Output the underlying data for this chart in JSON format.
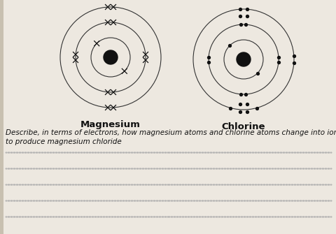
{
  "bg_color": "#c8c0b0",
  "paper_color": "#ede8e0",
  "title_mg": "Magnesium",
  "title_cl": "Chlorine",
  "question_line1": "Describe, in terms of electrons, how magnesium atoms and chlorine atoms change into ions",
  "question_line2": "to produce magnesium chloride",
  "question_fontsize": 7.5,
  "title_fontsize": 9.5,
  "shell_color": "#333333",
  "nucleus_color": "#111111",
  "electron_color": "#111111"
}
